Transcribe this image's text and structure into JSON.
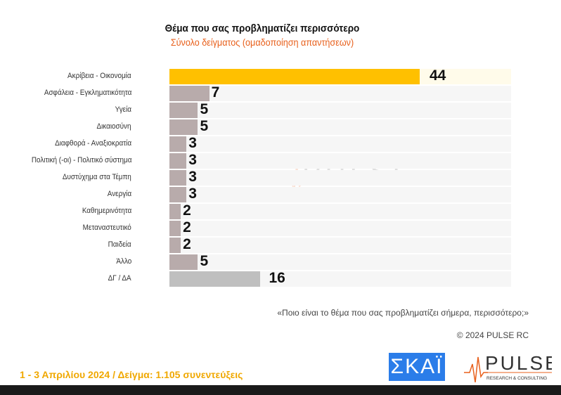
{
  "title": "Θέμα που σας προβληματίζει περισσότερο",
  "subtitle": "Σύνολο δείγματος (ομαδοποίηση απαντήσεων)",
  "question": "«Ποιο είναι το θέμα που σας προβληματίζει σήμερα, περισσότερο;»",
  "copyright": "© 2024 PULSE RC",
  "footer": "1 - 3  Απριλίου 2024  /  Δείγμα:  1.105 συνεντεύξεις",
  "logos": {
    "skai": "ΣΚΑΪ",
    "pulse": "PULSE",
    "pulse_sub": "RESEARCH & CONSULTING"
  },
  "colors": {
    "highlight": "#FFC000",
    "default": "#B8ABAB",
    "dk": "#BFBFBF",
    "subtitle": "#E8601C"
  },
  "chart_data": {
    "type": "bar",
    "orientation": "horizontal",
    "title": "Θέμα που σας προβληματίζει περισσότερο",
    "subtitle": "Σύνολο δείγματος (ομαδοποίηση απαντήσεων)",
    "categories": [
      "Ακρίβεια - Οικονομία",
      "Ασφάλεια - Εγκληματικότητα",
      "Υγεία",
      "Δικαιοσύνη",
      "Διαφθορά - Αναξιοκρατία",
      "Πολιτική (-οι) - Πολιτικό σύστημα",
      "Δυστύχημα στα Τέμπη",
      "Ανεργία",
      "Καθημερινότητα",
      "Μεταναστευτικό",
      "Παιδεία",
      "Άλλο",
      "ΔΓ / ΔΑ"
    ],
    "values": [
      44,
      7,
      5,
      5,
      3,
      3,
      3,
      3,
      2,
      2,
      2,
      5,
      16
    ],
    "xlim": [
      0,
      60
    ],
    "grid": false
  }
}
